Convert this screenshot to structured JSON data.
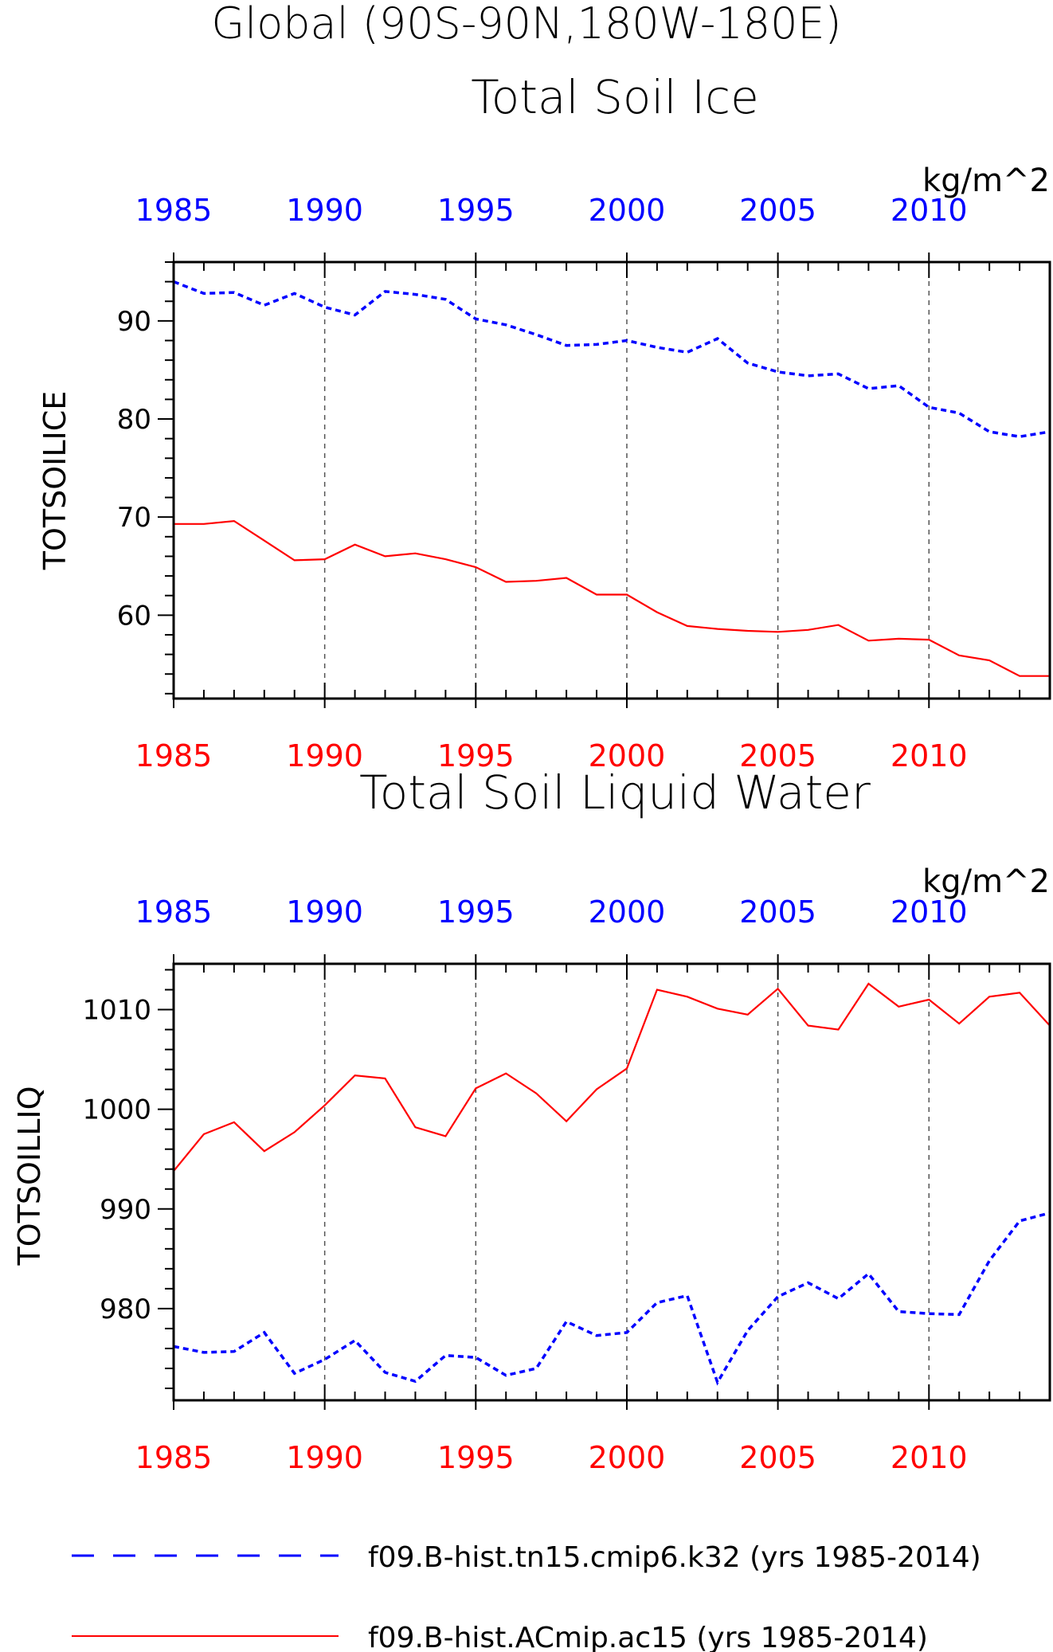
{
  "header": {
    "title_line1": "Global (90S-90N,180W-180E)"
  },
  "colors": {
    "series_ice_k32": "#0000ff",
    "series_ac15": "#ff0000",
    "axis": "#000000",
    "grid": "#555555"
  },
  "chart_data": [
    {
      "type": "line",
      "title": "Total Soil Ice",
      "units": "kg/m^2",
      "ylabel": "TOTSOILICE",
      "xlim": [
        1985,
        2014
      ],
      "ylim": [
        51.5,
        96
      ],
      "yticks": [
        60,
        70,
        80,
        90
      ],
      "xticks": [
        1985,
        1990,
        1995,
        2000,
        2005,
        2010
      ],
      "x": [
        1985,
        1986,
        1987,
        1988,
        1989,
        1990,
        1991,
        1992,
        1993,
        1994,
        1995,
        1996,
        1997,
        1998,
        1999,
        2000,
        2001,
        2002,
        2003,
        2004,
        2005,
        2006,
        2007,
        2008,
        2009,
        2010,
        2011,
        2012,
        2013,
        2014
      ],
      "grid": "dashed vertical at 5-year ticks",
      "series": [
        {
          "name": "f09.B-hist.tn15.cmip6.k32 (yrs 1985-2014)",
          "color": "#0000ff",
          "style": "dashed",
          "axis": "top",
          "values": [
            94.0,
            92.8,
            92.9,
            91.6,
            92.8,
            91.4,
            90.6,
            93.0,
            92.7,
            92.2,
            90.2,
            89.6,
            88.6,
            87.5,
            87.6,
            88.0,
            87.3,
            86.8,
            88.2,
            85.7,
            84.8,
            84.4,
            84.6,
            83.1,
            83.4,
            81.2,
            80.6,
            78.7,
            78.2,
            78.7
          ]
        },
        {
          "name": "f09.B-hist.ACmip.ac15 (yrs 1985-2014)",
          "color": "#ff0000",
          "style": "solid",
          "axis": "bottom",
          "values": [
            69.3,
            69.3,
            69.6,
            67.6,
            65.6,
            65.7,
            67.2,
            66.0,
            66.3,
            65.7,
            64.9,
            63.4,
            63.5,
            63.8,
            62.1,
            62.1,
            60.3,
            58.9,
            58.6,
            58.4,
            58.3,
            58.5,
            59.0,
            57.4,
            57.6,
            57.5,
            55.9,
            55.4,
            53.8,
            53.8
          ]
        }
      ]
    },
    {
      "type": "line",
      "title": "Total Soil Liquid Water",
      "units": "kg/m^2",
      "ylabel": "TOTSOILLIQ",
      "xlim": [
        1985,
        2014
      ],
      "ylim": [
        970.8,
        1014.6
      ],
      "yticks": [
        980,
        990,
        1000,
        1010
      ],
      "xticks": [
        1985,
        1990,
        1995,
        2000,
        2005,
        2010
      ],
      "x": [
        1985,
        1986,
        1987,
        1988,
        1989,
        1990,
        1991,
        1992,
        1993,
        1994,
        1995,
        1996,
        1997,
        1998,
        1999,
        2000,
        2001,
        2002,
        2003,
        2004,
        2005,
        2006,
        2007,
        2008,
        2009,
        2010,
        2011,
        2012,
        2013,
        2014
      ],
      "grid": "dashed vertical at 5-year ticks",
      "series": [
        {
          "name": "f09.B-hist.tn15.cmip6.k32 (yrs 1985-2014)",
          "color": "#0000ff",
          "style": "dashed",
          "axis": "top",
          "values": [
            976.2,
            975.6,
            975.7,
            977.6,
            973.5,
            974.9,
            976.8,
            973.6,
            972.7,
            975.3,
            975.1,
            973.3,
            974.0,
            978.7,
            977.3,
            977.6,
            980.6,
            981.3,
            972.6,
            977.8,
            981.2,
            982.6,
            981.0,
            983.5,
            979.7,
            979.5,
            979.4,
            984.8,
            988.8,
            989.6
          ]
        },
        {
          "name": "f09.B-hist.ACmip.ac15 (yrs 1985-2014)",
          "color": "#ff0000",
          "style": "solid",
          "axis": "bottom",
          "values": [
            993.8,
            997.5,
            998.7,
            995.8,
            997.7,
            1000.4,
            1003.4,
            1003.1,
            998.2,
            997.3,
            1002.1,
            1003.6,
            1001.6,
            998.8,
            1002.0,
            1004.1,
            1012.0,
            1011.3,
            1010.1,
            1009.5,
            1012.1,
            1008.4,
            1008.0,
            1012.6,
            1010.3,
            1011.0,
            1008.6,
            1011.3,
            1011.7,
            1008.4
          ]
        }
      ]
    }
  ],
  "legend": {
    "placement": "bottom",
    "items": [
      {
        "label": "f09.B-hist.tn15.cmip6.k32 (yrs 1985-2014)",
        "color": "#0000ff",
        "style": "dashed"
      },
      {
        "label": "f09.B-hist.ACmip.ac15 (yrs 1985-2014)",
        "color": "#ff0000",
        "style": "solid"
      }
    ]
  }
}
